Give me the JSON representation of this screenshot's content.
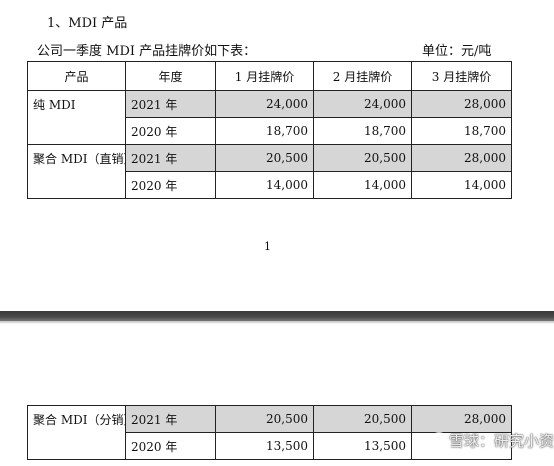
{
  "section_title": "1、MDI 产品",
  "intro": "公司一季度 MDI 产品挂牌价如下表：",
  "unit": "单位：元/吨",
  "table": {
    "headers": [
      "产品",
      "年度",
      "1 月挂牌价",
      "2 月挂牌价",
      "3 月挂牌价"
    ],
    "groups": [
      {
        "product": "纯 MDI",
        "rows": [
          {
            "year": "2021 年",
            "jan": "24,000",
            "feb": "24,000",
            "mar": "28,000"
          },
          {
            "year": "2020 年",
            "jan": "18,700",
            "feb": "18,700",
            "mar": "18,700"
          }
        ]
      },
      {
        "product": "聚合 MDI（直销）",
        "rows": [
          {
            "year": "2021 年",
            "jan": "20,500",
            "feb": "20,500",
            "mar": "28,000"
          },
          {
            "year": "2020 年",
            "jan": "14,000",
            "feb": "14,000",
            "mar": "14,000"
          }
        ]
      }
    ]
  },
  "page_number": "1",
  "table2": {
    "product": "聚合 MDI（分销）",
    "rows": [
      {
        "year": "2021 年",
        "jan": "20,500",
        "feb": "20,500",
        "mar": "28,000"
      },
      {
        "year": "2020 年",
        "jan": "13,500",
        "feb": "13,500",
        "mar": ""
      }
    ]
  },
  "watermark": {
    "text": "雪球：研究小资",
    "icon": "chat-bubble-icon"
  },
  "colors": {
    "shade": "#d6d6d6",
    "page_break": "#3a3a3a"
  }
}
